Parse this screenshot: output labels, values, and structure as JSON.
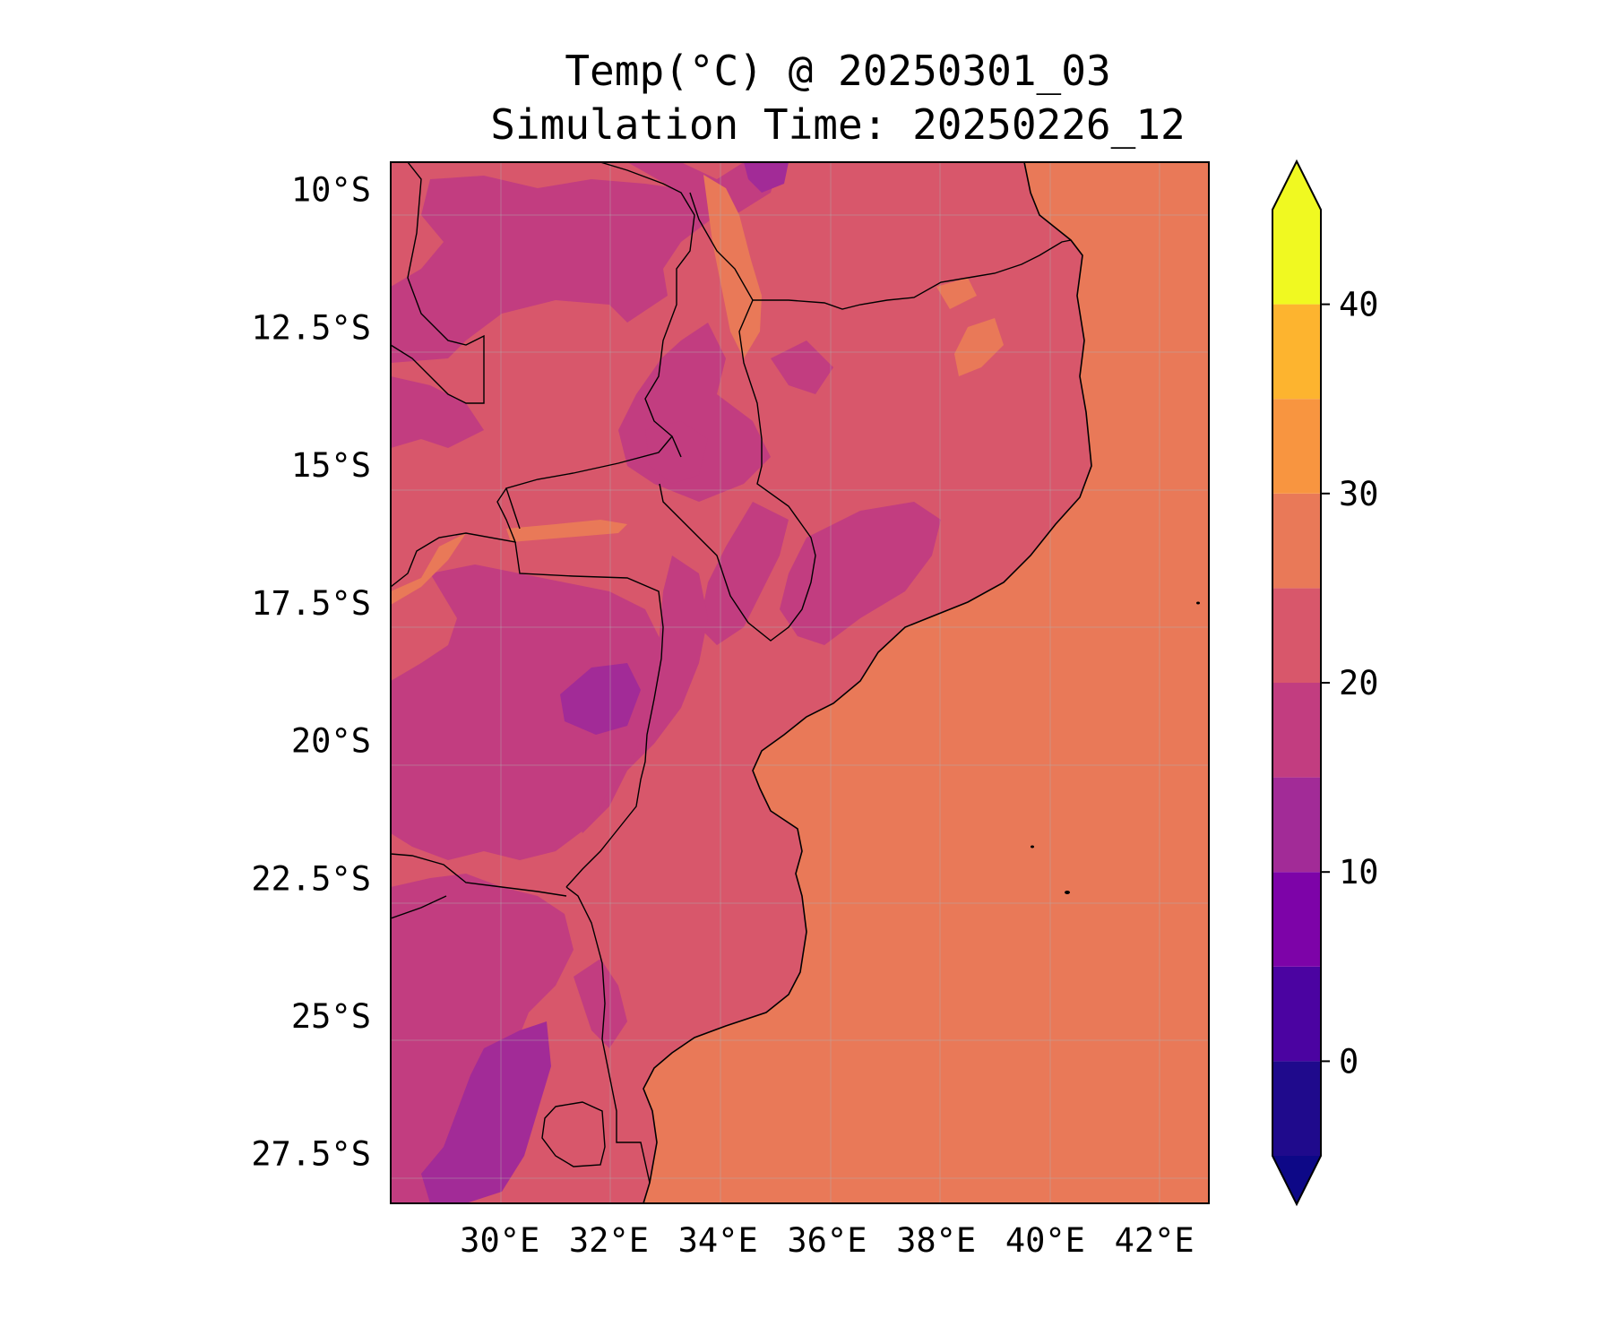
{
  "title": "Temp(°C) @ 20250301_03",
  "subtitle": "Simulation Time: 20250226_12",
  "map": {
    "lon_range": [
      28,
      43
    ],
    "lat_range": [
      -28.4,
      -9.5
    ],
    "x_ticks": [
      "30°E",
      "32°E",
      "34°E",
      "36°E",
      "38°E",
      "40°E",
      "42°E"
    ],
    "x_tick_values": [
      30,
      32,
      34,
      36,
      38,
      40,
      42
    ],
    "y_ticks": [
      "10°S",
      "12.5°S",
      "15°S",
      "17.5°S",
      "20°S",
      "22.5°S",
      "25°S",
      "27.5°S"
    ],
    "y_tick_values": [
      -10,
      -12.5,
      -15,
      -17.5,
      -20,
      -22.5,
      -25,
      -27.5
    ],
    "ocean_temp_band": "25–30",
    "land_base_band": "20–25",
    "gridlines": true
  },
  "colorbar": {
    "levels": [
      -5,
      0,
      5,
      10,
      15,
      20,
      25,
      30,
      35,
      40,
      45
    ],
    "colors": [
      "#1f0a8c",
      "#4b03a1",
      "#7d03a8",
      "#a22b97",
      "#c23d80",
      "#d8576b",
      "#e97958",
      "#f89540",
      "#fdb42f",
      "#f0f921"
    ],
    "under_color": "#0d0887",
    "over_color": "#f0f921",
    "extend": "both",
    "tick_labels": [
      "0",
      "10",
      "20",
      "30",
      "40"
    ],
    "tick_values": [
      0,
      10,
      20,
      30,
      40
    ]
  }
}
